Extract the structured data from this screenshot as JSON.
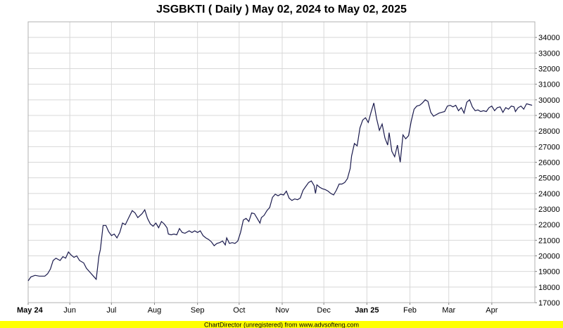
{
  "chart_data": {
    "type": "line",
    "title": "JSGBKTI ( Daily ) May 02, 2024 to May 02, 2025",
    "ylim": [
      17000,
      35000
    ],
    "y_ticks": [
      17000,
      18000,
      19000,
      20000,
      21000,
      22000,
      23000,
      24000,
      25000,
      26000,
      27000,
      28000,
      29000,
      30000,
      31000,
      32000,
      33000,
      34000
    ],
    "y_tick_labels": [
      "17000",
      "18000",
      "19000",
      "20000",
      "21000",
      "22000",
      "23000",
      "24000",
      "25000",
      "26000",
      "27000",
      "28000",
      "29000",
      "30000",
      "31000",
      "32000",
      "33000",
      "34000"
    ],
    "x_ticks": [
      {
        "label": "May 24",
        "date": "2024-05-01",
        "bold": true
      },
      {
        "label": "Jun",
        "date": "2024-06-01",
        "bold": false
      },
      {
        "label": "Jul",
        "date": "2024-07-01",
        "bold": false
      },
      {
        "label": "Aug",
        "date": "2024-08-01",
        "bold": false
      },
      {
        "label": "Sep",
        "date": "2024-09-01",
        "bold": false
      },
      {
        "label": "Oct",
        "date": "2024-10-01",
        "bold": false
      },
      {
        "label": "Nov",
        "date": "2024-11-01",
        "bold": false
      },
      {
        "label": "Dec",
        "date": "2024-12-01",
        "bold": false
      },
      {
        "label": "Jan 25",
        "date": "2025-01-01",
        "bold": true
      },
      {
        "label": "Feb",
        "date": "2025-02-01",
        "bold": false
      },
      {
        "label": "Mar",
        "date": "2025-03-01",
        "bold": false
      },
      {
        "label": "Apr",
        "date": "2025-04-01",
        "bold": false
      }
    ],
    "xlim": [
      "2024-05-02",
      "2025-05-02"
    ],
    "grid": true,
    "line_color": "#1a1a4d",
    "series": [
      {
        "points": [
          [
            "2024-05-02",
            18400
          ],
          [
            "2024-05-04",
            18650
          ],
          [
            "2024-05-07",
            18750
          ],
          [
            "2024-05-10",
            18700
          ],
          [
            "2024-05-14",
            18700
          ],
          [
            "2024-05-16",
            18850
          ],
          [
            "2024-05-18",
            19150
          ],
          [
            "2024-05-20",
            19700
          ],
          [
            "2024-05-22",
            19850
          ],
          [
            "2024-05-25",
            19700
          ],
          [
            "2024-05-27",
            19950
          ],
          [
            "2024-05-29",
            19850
          ],
          [
            "2024-05-31",
            20250
          ],
          [
            "2024-06-02",
            20050
          ],
          [
            "2024-06-04",
            19900
          ],
          [
            "2024-06-06",
            20000
          ],
          [
            "2024-06-08",
            19700
          ],
          [
            "2024-06-11",
            19550
          ],
          [
            "2024-06-13",
            19200
          ],
          [
            "2024-06-16",
            18900
          ],
          [
            "2024-06-18",
            18700
          ],
          [
            "2024-06-20",
            18500
          ],
          [
            "2024-06-22",
            20000
          ],
          [
            "2024-06-23",
            20400
          ],
          [
            "2024-06-25",
            21950
          ],
          [
            "2024-06-27",
            21950
          ],
          [
            "2024-06-29",
            21550
          ],
          [
            "2024-07-01",
            21300
          ],
          [
            "2024-07-03",
            21400
          ],
          [
            "2024-07-05",
            21150
          ],
          [
            "2024-07-07",
            21500
          ],
          [
            "2024-07-09",
            22100
          ],
          [
            "2024-07-11",
            22000
          ],
          [
            "2024-07-14",
            22550
          ],
          [
            "2024-07-16",
            22900
          ],
          [
            "2024-07-18",
            22750
          ],
          [
            "2024-07-20",
            22450
          ],
          [
            "2024-07-23",
            22700
          ],
          [
            "2024-07-25",
            22950
          ],
          [
            "2024-07-27",
            22400
          ],
          [
            "2024-07-29",
            22050
          ],
          [
            "2024-07-31",
            21900
          ],
          [
            "2024-08-02",
            22100
          ],
          [
            "2024-08-04",
            21800
          ],
          [
            "2024-08-06",
            22200
          ],
          [
            "2024-08-08",
            22050
          ],
          [
            "2024-08-10",
            21800
          ],
          [
            "2024-08-11",
            21400
          ],
          [
            "2024-08-13",
            21350
          ],
          [
            "2024-08-15",
            21400
          ],
          [
            "2024-08-17",
            21350
          ],
          [
            "2024-08-19",
            21750
          ],
          [
            "2024-08-21",
            21500
          ],
          [
            "2024-08-23",
            21450
          ],
          [
            "2024-08-26",
            21600
          ],
          [
            "2024-08-28",
            21500
          ],
          [
            "2024-08-30",
            21600
          ],
          [
            "2024-09-01",
            21500
          ],
          [
            "2024-09-03",
            21600
          ],
          [
            "2024-09-05",
            21300
          ],
          [
            "2024-09-07",
            21150
          ],
          [
            "2024-09-09",
            21050
          ],
          [
            "2024-09-11",
            20900
          ],
          [
            "2024-09-13",
            20650
          ],
          [
            "2024-09-15",
            20800
          ],
          [
            "2024-09-17",
            20850
          ],
          [
            "2024-09-19",
            20950
          ],
          [
            "2024-09-21",
            20700
          ],
          [
            "2024-09-22",
            21150
          ],
          [
            "2024-09-24",
            20800
          ],
          [
            "2024-09-26",
            20850
          ],
          [
            "2024-09-28",
            20800
          ],
          [
            "2024-09-30",
            20950
          ],
          [
            "2024-10-02",
            21500
          ],
          [
            "2024-10-04",
            22300
          ],
          [
            "2024-10-06",
            22400
          ],
          [
            "2024-10-08",
            22200
          ],
          [
            "2024-10-10",
            22750
          ],
          [
            "2024-10-12",
            22700
          ],
          [
            "2024-10-14",
            22400
          ],
          [
            "2024-10-16",
            22100
          ],
          [
            "2024-10-17",
            22450
          ],
          [
            "2024-10-19",
            22600
          ],
          [
            "2024-10-21",
            22900
          ],
          [
            "2024-10-23",
            23100
          ],
          [
            "2024-10-25",
            23750
          ],
          [
            "2024-10-27",
            23950
          ],
          [
            "2024-10-29",
            23850
          ],
          [
            "2024-10-31",
            23950
          ],
          [
            "2024-11-02",
            23900
          ],
          [
            "2024-11-04",
            24150
          ],
          [
            "2024-11-06",
            23700
          ],
          [
            "2024-11-08",
            23550
          ],
          [
            "2024-11-10",
            23650
          ],
          [
            "2024-11-12",
            23600
          ],
          [
            "2024-11-14",
            23700
          ],
          [
            "2024-11-16",
            24200
          ],
          [
            "2024-11-18",
            24450
          ],
          [
            "2024-11-20",
            24700
          ],
          [
            "2024-11-22",
            24800
          ],
          [
            "2024-11-24",
            24500
          ],
          [
            "2024-11-25",
            24000
          ],
          [
            "2024-11-26",
            24550
          ],
          [
            "2024-11-28",
            24400
          ],
          [
            "2024-11-30",
            24300
          ],
          [
            "2024-12-02",
            24250
          ],
          [
            "2024-12-04",
            24150
          ],
          [
            "2024-12-06",
            24000
          ],
          [
            "2024-12-08",
            23900
          ],
          [
            "2024-12-10",
            24200
          ],
          [
            "2024-12-12",
            24600
          ],
          [
            "2024-12-14",
            24600
          ],
          [
            "2024-12-16",
            24700
          ],
          [
            "2024-12-18",
            24950
          ],
          [
            "2024-12-20",
            25600
          ],
          [
            "2024-12-21",
            26400
          ],
          [
            "2024-12-23",
            27200
          ],
          [
            "2024-12-25",
            27050
          ],
          [
            "2024-12-27",
            28200
          ],
          [
            "2024-12-29",
            28700
          ],
          [
            "2024-12-31",
            28850
          ],
          [
            "2025-01-02",
            28550
          ],
          [
            "2025-01-04",
            29200
          ],
          [
            "2025-01-06",
            29800
          ],
          [
            "2025-01-08",
            28800
          ],
          [
            "2025-01-10",
            28050
          ],
          [
            "2025-01-12",
            28450
          ],
          [
            "2025-01-14",
            27550
          ],
          [
            "2025-01-16",
            27100
          ],
          [
            "2025-01-17",
            27900
          ],
          [
            "2025-01-19",
            26700
          ],
          [
            "2025-01-21",
            26350
          ],
          [
            "2025-01-23",
            27100
          ],
          [
            "2025-01-25",
            26000
          ],
          [
            "2025-01-27",
            27750
          ],
          [
            "2025-01-29",
            27500
          ],
          [
            "2025-01-31",
            27700
          ],
          [
            "2025-02-02",
            28650
          ],
          [
            "2025-02-04",
            29400
          ],
          [
            "2025-02-06",
            29600
          ],
          [
            "2025-02-08",
            29650
          ],
          [
            "2025-02-10",
            29800
          ],
          [
            "2025-02-12",
            30000
          ],
          [
            "2025-02-14",
            29900
          ],
          [
            "2025-02-16",
            29200
          ],
          [
            "2025-02-18",
            28950
          ],
          [
            "2025-02-20",
            29050
          ],
          [
            "2025-02-22",
            29150
          ],
          [
            "2025-02-24",
            29200
          ],
          [
            "2025-02-26",
            29250
          ],
          [
            "2025-02-28",
            29600
          ],
          [
            "2025-03-02",
            29650
          ],
          [
            "2025-03-04",
            29550
          ],
          [
            "2025-03-06",
            29650
          ],
          [
            "2025-03-08",
            29300
          ],
          [
            "2025-03-10",
            29500
          ],
          [
            "2025-03-12",
            29150
          ],
          [
            "2025-03-14",
            29850
          ],
          [
            "2025-03-16",
            30000
          ],
          [
            "2025-03-18",
            29550
          ],
          [
            "2025-03-20",
            29300
          ],
          [
            "2025-03-22",
            29350
          ],
          [
            "2025-03-24",
            29250
          ],
          [
            "2025-03-26",
            29300
          ],
          [
            "2025-03-28",
            29250
          ],
          [
            "2025-03-30",
            29500
          ],
          [
            "2025-04-01",
            29600
          ],
          [
            "2025-04-03",
            29300
          ],
          [
            "2025-04-05",
            29500
          ],
          [
            "2025-04-07",
            29550
          ],
          [
            "2025-04-09",
            29200
          ],
          [
            "2025-04-11",
            29500
          ],
          [
            "2025-04-13",
            29400
          ],
          [
            "2025-04-15",
            29600
          ],
          [
            "2025-04-17",
            29550
          ],
          [
            "2025-04-18",
            29250
          ],
          [
            "2025-04-20",
            29500
          ],
          [
            "2025-04-22",
            29600
          ],
          [
            "2025-04-24",
            29400
          ],
          [
            "2025-04-26",
            29750
          ],
          [
            "2025-04-28",
            29700
          ],
          [
            "2025-04-30",
            29650
          ]
        ]
      }
    ]
  },
  "footer": {
    "text": "ChartDirector (unregistered) from www.advsofteng.com",
    "background": "#ffff00"
  }
}
